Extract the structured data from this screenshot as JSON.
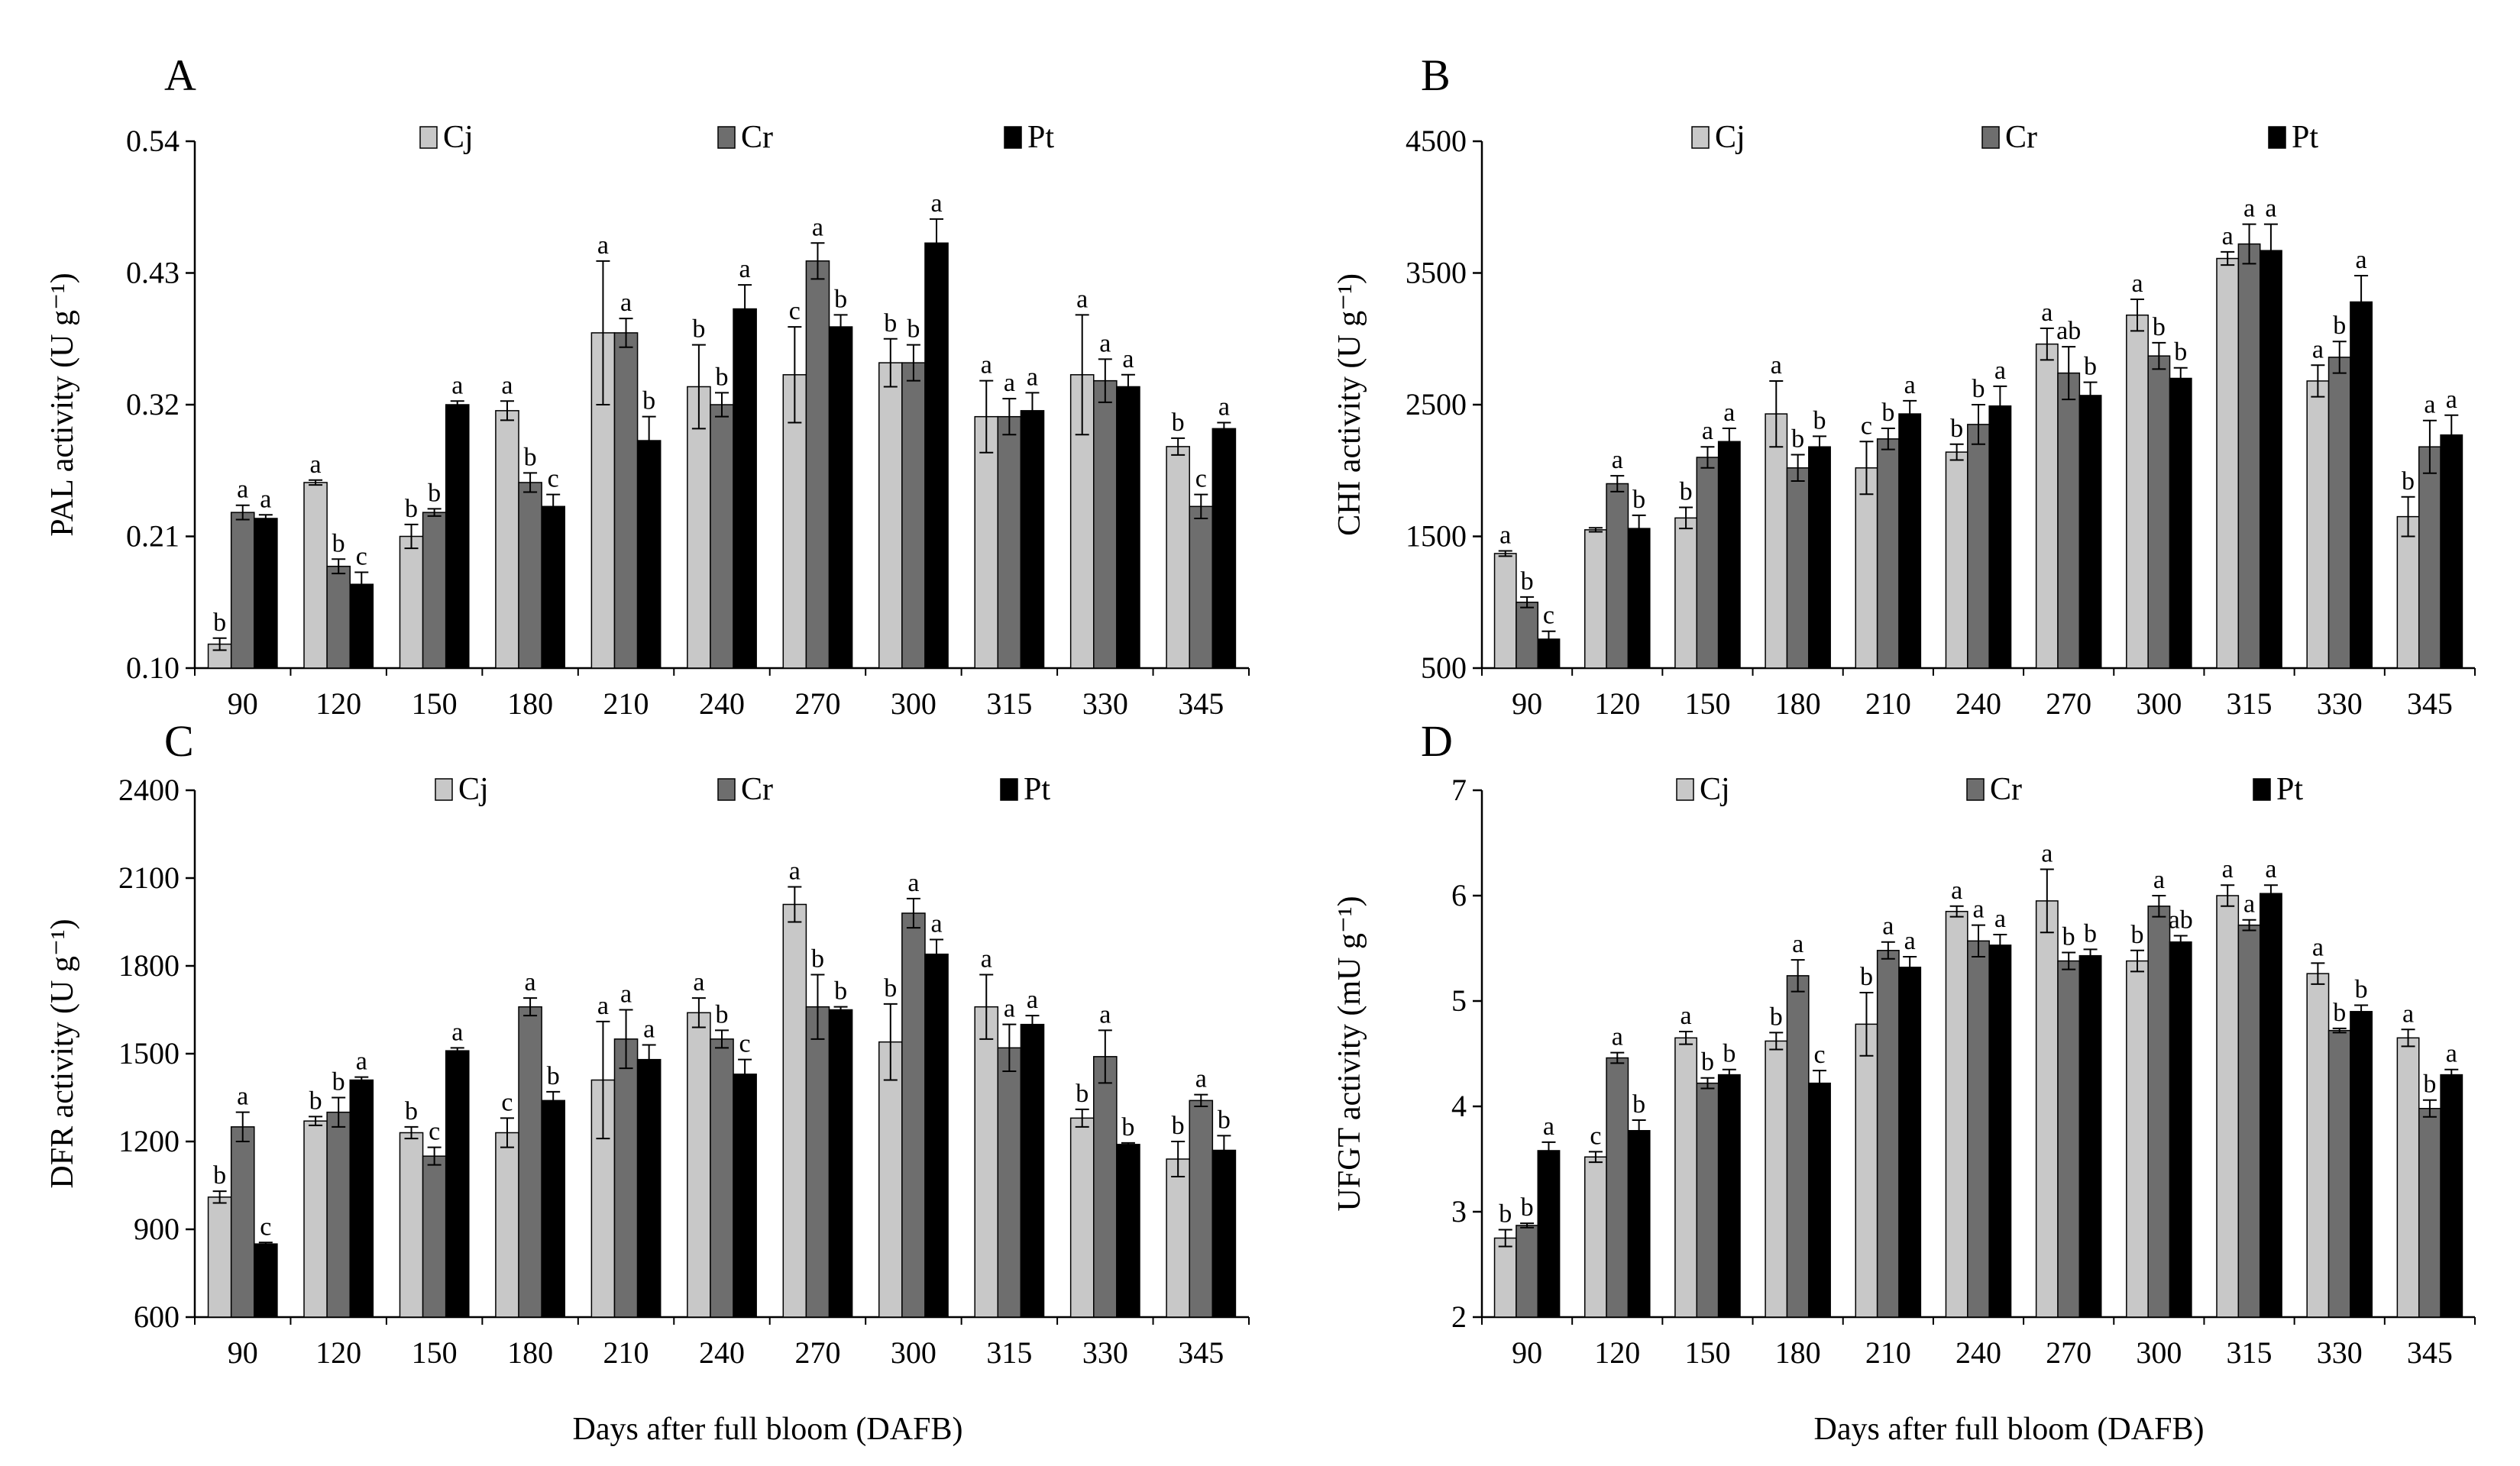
{
  "figure_xlabel": "Days after full bloom (DAFB)",
  "colors": {
    "Cj": "#c8c8c8",
    "Cr": "#6e6e6e",
    "Pt": "#000000"
  },
  "chart_data": [
    {
      "panel": "A",
      "type": "bar",
      "ylabel": "PAL activity (U g⁻¹)",
      "ylim": [
        0.1,
        0.54
      ],
      "yticks": [
        "0.10",
        "0.21",
        "0.32",
        "0.43",
        "0.54"
      ],
      "categories": [
        "90",
        "120",
        "150",
        "180",
        "210",
        "240",
        "270",
        "300",
        "315",
        "330",
        "345"
      ],
      "series": [
        {
          "name": "Cj",
          "values": [
            0.12,
            0.255,
            0.21,
            0.315,
            0.38,
            0.335,
            0.345,
            0.355,
            0.31,
            0.345,
            0.285
          ],
          "errors": [
            0.005,
            0.002,
            0.01,
            0.008,
            0.06,
            0.035,
            0.04,
            0.02,
            0.03,
            0.05,
            0.007
          ],
          "labels": [
            "b",
            "a",
            "b",
            "a",
            "a",
            "b",
            "c",
            "b",
            "a",
            "a",
            "b"
          ]
        },
        {
          "name": "Cr",
          "values": [
            0.23,
            0.185,
            0.23,
            0.255,
            0.38,
            0.32,
            0.44,
            0.355,
            0.31,
            0.34,
            0.235
          ],
          "errors": [
            0.006,
            0.006,
            0.003,
            0.008,
            0.012,
            0.01,
            0.015,
            0.015,
            0.015,
            0.018,
            0.01
          ],
          "labels": [
            "a",
            "b",
            "b",
            "b",
            "a",
            "b",
            "a",
            "b",
            "a",
            "a",
            "c"
          ]
        },
        {
          "name": "Pt",
          "values": [
            0.225,
            0.17,
            0.32,
            0.235,
            0.29,
            0.4,
            0.385,
            0.455,
            0.315,
            0.335,
            0.3
          ],
          "errors": [
            0.003,
            0.01,
            0.003,
            0.01,
            0.02,
            0.02,
            0.01,
            0.02,
            0.015,
            0.01,
            0.005
          ],
          "labels": [
            "a",
            "c",
            "a",
            "c",
            "b",
            "a",
            "b",
            "a",
            "a",
            "a",
            "a"
          ]
        }
      ]
    },
    {
      "panel": "B",
      "type": "bar",
      "ylabel": "CHI activity (U g⁻¹)",
      "ylim": [
        500,
        4500
      ],
      "yticks": [
        "500",
        "1500",
        "2500",
        "3500",
        "4500"
      ],
      "categories": [
        "90",
        "120",
        "150",
        "180",
        "210",
        "240",
        "270",
        "300",
        "315",
        "330",
        "345"
      ],
      "series": [
        {
          "name": "Cj",
          "values": [
            1370,
            1550,
            1640,
            2430,
            2020,
            2140,
            2960,
            3180,
            3610,
            2680,
            1650
          ],
          "errors": [
            20,
            15,
            80,
            250,
            200,
            60,
            120,
            120,
            50,
            120,
            150
          ],
          "labels": [
            "a",
            "",
            "b",
            "a",
            "c",
            "b",
            "a",
            "a",
            "a",
            "a",
            "b"
          ]
        },
        {
          "name": "Cr",
          "values": [
            1000,
            1900,
            2100,
            2020,
            2240,
            2350,
            2740,
            2870,
            3720,
            2860,
            2180
          ],
          "errors": [
            40,
            60,
            80,
            100,
            80,
            150,
            200,
            100,
            150,
            120,
            200
          ],
          "labels": [
            "b",
            "a",
            "a",
            "b",
            "b",
            "b",
            "ab",
            "b",
            "a",
            "b",
            "a"
          ]
        },
        {
          "name": "Pt",
          "values": [
            720,
            1560,
            2220,
            2180,
            2430,
            2490,
            2570,
            2700,
            3670,
            3280,
            2270
          ],
          "errors": [
            60,
            100,
            100,
            80,
            100,
            150,
            100,
            80,
            200,
            200,
            150
          ],
          "labels": [
            "c",
            "b",
            "a",
            "b",
            "a",
            "a",
            "b",
            "b",
            "a",
            "a",
            "a"
          ]
        }
      ]
    },
    {
      "panel": "C",
      "type": "bar",
      "ylabel": "DFR activity (U g⁻¹)",
      "ylim": [
        600,
        2400
      ],
      "yticks": [
        "600",
        "900",
        "1200",
        "1500",
        "1800",
        "2100",
        "2400"
      ],
      "categories": [
        "90",
        "120",
        "150",
        "180",
        "210",
        "240",
        "270",
        "300",
        "315",
        "330",
        "345"
      ],
      "series": [
        {
          "name": "Cj",
          "values": [
            1010,
            1270,
            1230,
            1230,
            1410,
            1640,
            2010,
            1540,
            1660,
            1280,
            1140
          ],
          "errors": [
            20,
            15,
            20,
            50,
            200,
            50,
            60,
            130,
            110,
            30,
            60
          ],
          "labels": [
            "b",
            "b",
            "b",
            "c",
            "a",
            "a",
            "a",
            "b",
            "a",
            "b",
            "b"
          ]
        },
        {
          "name": "Cr",
          "values": [
            1250,
            1300,
            1150,
            1660,
            1550,
            1550,
            1660,
            1980,
            1520,
            1490,
            1340
          ],
          "errors": [
            50,
            50,
            30,
            30,
            100,
            30,
            110,
            50,
            80,
            90,
            20
          ],
          "labels": [
            "a",
            "b",
            "c",
            "a",
            "a",
            "b",
            "b",
            "a",
            "a",
            "a",
            "a"
          ]
        },
        {
          "name": "Pt",
          "values": [
            850,
            1410,
            1510,
            1340,
            1480,
            1430,
            1650,
            1840,
            1600,
            1190,
            1170
          ],
          "errors": [
            5,
            10,
            10,
            30,
            50,
            50,
            10,
            50,
            30,
            5,
            50
          ],
          "labels": [
            "c",
            "a",
            "a",
            "b",
            "a",
            "c",
            "b",
            "a",
            "a",
            "b",
            "b"
          ]
        }
      ]
    },
    {
      "panel": "D",
      "type": "bar",
      "ylabel": "UFGT  activity (mU g⁻¹)",
      "ylim": [
        2,
        7
      ],
      "yticks": [
        "2",
        "3",
        "4",
        "5",
        "6",
        "7"
      ],
      "categories": [
        "90",
        "120",
        "150",
        "180",
        "210",
        "240",
        "270",
        "300",
        "315",
        "330",
        "345"
      ],
      "series": [
        {
          "name": "Cj",
          "values": [
            2.75,
            3.52,
            4.65,
            4.62,
            4.78,
            5.85,
            5.95,
            5.38,
            6.0,
            5.26,
            4.65
          ],
          "errors": [
            0.08,
            0.05,
            0.06,
            0.08,
            0.3,
            0.05,
            0.3,
            0.1,
            0.1,
            0.1,
            0.08
          ],
          "labels": [
            "b",
            "c",
            "a",
            "b",
            "b",
            "a",
            "a",
            "b",
            "a",
            "a",
            "a"
          ]
        },
        {
          "name": "Cr",
          "values": [
            2.87,
            4.46,
            4.22,
            5.24,
            5.48,
            5.57,
            5.38,
            5.9,
            5.72,
            4.72,
            3.98
          ],
          "errors": [
            0.02,
            0.05,
            0.05,
            0.15,
            0.08,
            0.15,
            0.08,
            0.1,
            0.05,
            0.02,
            0.08
          ],
          "labels": [
            "b",
            "a",
            "b",
            "a",
            "a",
            "a",
            "b",
            "a",
            "a",
            "b",
            "b"
          ]
        },
        {
          "name": "Pt",
          "values": [
            3.58,
            3.77,
            4.3,
            4.22,
            5.32,
            5.53,
            5.43,
            5.56,
            6.02,
            4.9,
            4.3
          ],
          "errors": [
            0.08,
            0.1,
            0.05,
            0.12,
            0.1,
            0.1,
            0.06,
            0.06,
            0.08,
            0.06,
            0.05
          ],
          "labels": [
            "a",
            "b",
            "b",
            "c",
            "a",
            "a",
            "b",
            "ab",
            "a",
            "b",
            "a"
          ]
        }
      ]
    }
  ]
}
